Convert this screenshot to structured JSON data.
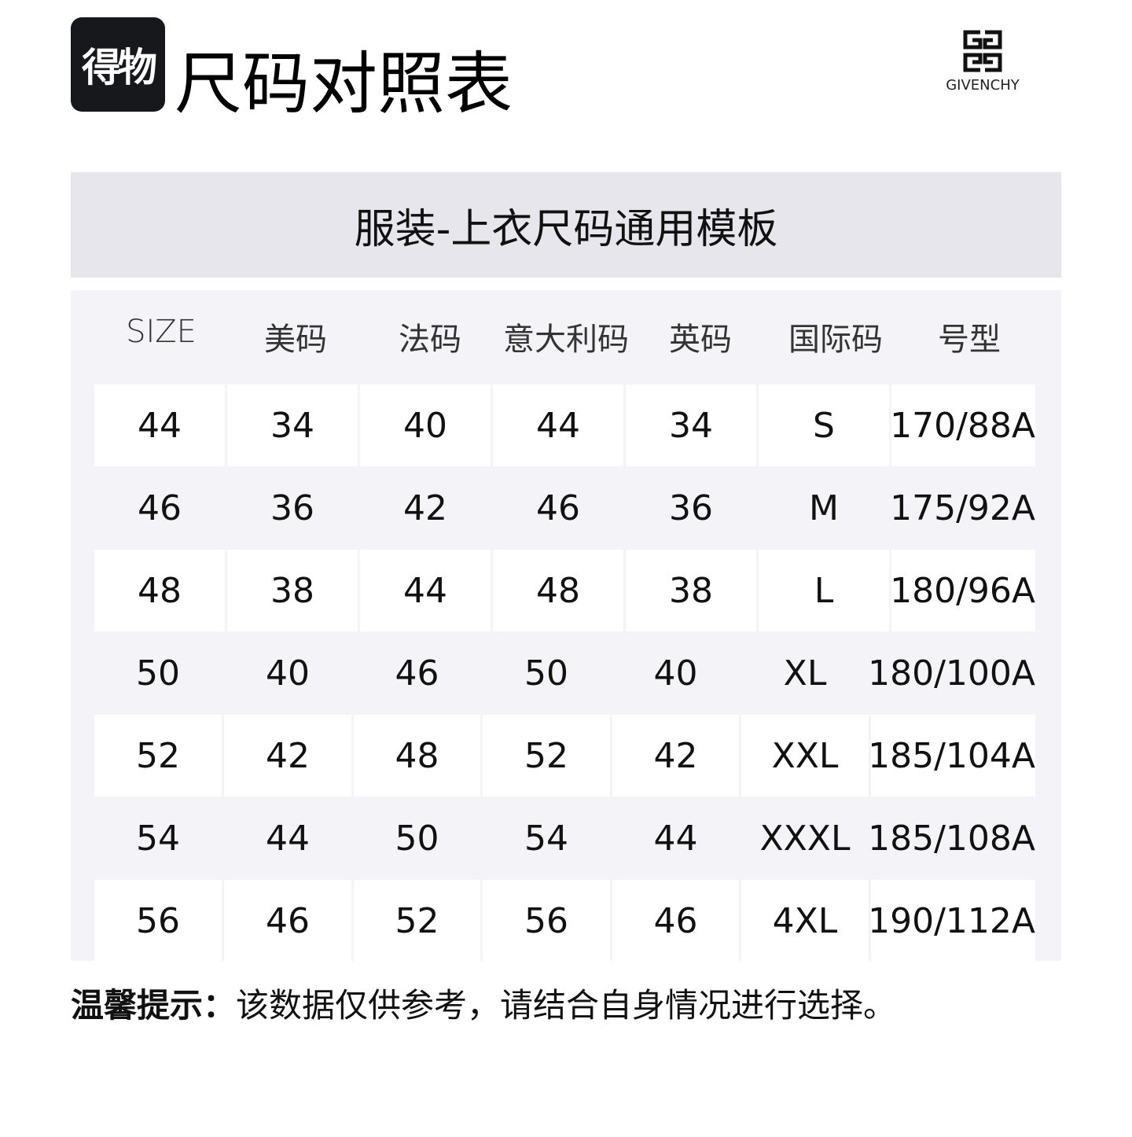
{
  "header": {
    "app_logo_text": "得物",
    "title": "尺码对照表",
    "brand_logo_text": "GIVENCHY"
  },
  "band_title": "服装-上衣尺码通用模板",
  "table": {
    "columns": [
      "SIZE",
      "美码",
      "法码",
      "意大利码",
      "英码",
      "国际码",
      "号型"
    ],
    "rows": [
      [
        "44",
        "34",
        "40",
        "44",
        "34",
        "S",
        "170/88A"
      ],
      [
        "46",
        "36",
        "42",
        "46",
        "36",
        "M",
        "175/92A"
      ],
      [
        "48",
        "38",
        "44",
        "48",
        "38",
        "L",
        "180/96A"
      ],
      [
        "50",
        "40",
        "46",
        "50",
        "40",
        "XL",
        "180/100A"
      ],
      [
        "52",
        "42",
        "48",
        "52",
        "42",
        "XXL",
        "185/104A"
      ],
      [
        "54",
        "44",
        "50",
        "54",
        "44",
        "XXXL",
        "185/108A"
      ],
      [
        "56",
        "46",
        "52",
        "56",
        "46",
        "4XL",
        "190/112A"
      ]
    ]
  },
  "note": {
    "label": "温馨提示：",
    "text": "该数据仅供参考，请结合自身情况进行选择。"
  },
  "colors": {
    "band": "#e6e6ec",
    "table_bg": "#f4f4f8",
    "cell": "#ffffff",
    "logo_bg": "#17181c"
  }
}
